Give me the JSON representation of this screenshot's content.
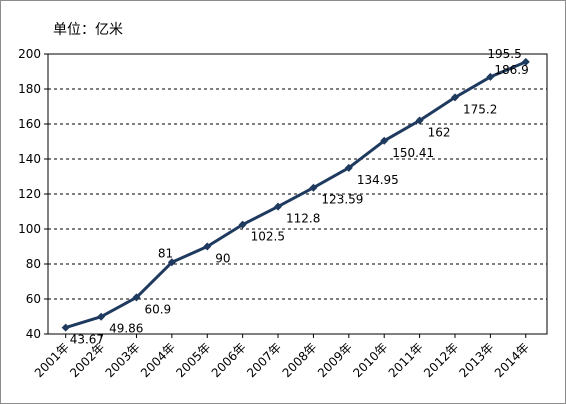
{
  "chart_data": {
    "type": "line",
    "unit_label": "单位：亿米",
    "categories": [
      "2001年",
      "2002年",
      "2003年",
      "2004年",
      "2005年",
      "2006年",
      "2007年",
      "2008年",
      "2009年",
      "2010年",
      "2011年",
      "2012年",
      "2013年",
      "2014年"
    ],
    "values": [
      43.67,
      49.86,
      60.9,
      81,
      90,
      102.5,
      112.8,
      123.59,
      134.95,
      150.41,
      162,
      175.2,
      186.9,
      195.5
    ],
    "data_labels": [
      "43.67",
      "49.86",
      "60.9",
      "81",
      "90",
      "102.5",
      "112.8",
      "123.59",
      "134.95",
      "150.41",
      "162",
      "175.2",
      "186.9",
      "195.5"
    ],
    "ylim": [
      40,
      200
    ],
    "yticks": [
      40,
      60,
      80,
      100,
      120,
      140,
      160,
      180,
      200
    ],
    "grid": "horizontal dashed",
    "legend": "none",
    "colors": {
      "line": "#1f3a5f",
      "marker": "#1f3a5f",
      "grid": "#000000",
      "axis": "#000000"
    }
  }
}
